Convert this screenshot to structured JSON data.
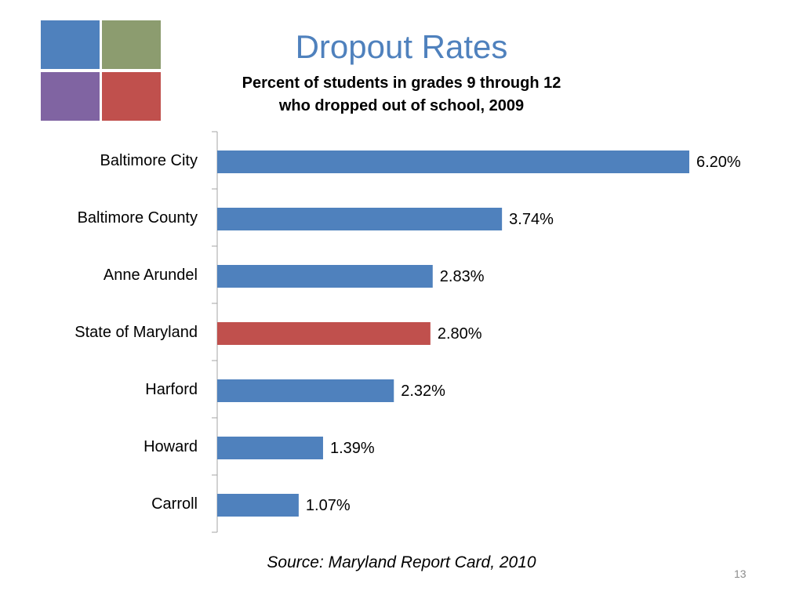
{
  "slide": {
    "title": "Dropout Rates",
    "subtitle_line1": "Percent of students in grades 9 through 12",
    "subtitle_line2": "who dropped out of school, 2009",
    "source": "Source: Maryland Report Card, 2010",
    "page_number": "13"
  },
  "colors": {
    "title": "#4f81bd",
    "bar_default": "#4f81bd",
    "bar_highlight": "#c0504d",
    "logo": [
      "#4f81bd",
      "#8c9c6f",
      "#8064a2",
      "#c0504d"
    ]
  },
  "chart_data": {
    "type": "bar",
    "orientation": "horizontal",
    "title": "Dropout Rates",
    "subtitle": "Percent of students in grades 9 through 12 who dropped out of school, 2009",
    "categories": [
      "Baltimore City",
      "Baltimore County",
      "Anne Arundel",
      "State of Maryland",
      "Harford",
      "Howard",
      "Carroll"
    ],
    "values": [
      6.2,
      3.74,
      2.83,
      2.8,
      2.32,
      1.39,
      1.07
    ],
    "value_labels": [
      "6.20%",
      "3.74%",
      "2.83%",
      "2.80%",
      "2.32%",
      "1.39%",
      "1.07%"
    ],
    "highlight_category": "State of Maryland",
    "xlim": [
      0,
      6.2
    ],
    "grid": false,
    "legend": "none"
  }
}
